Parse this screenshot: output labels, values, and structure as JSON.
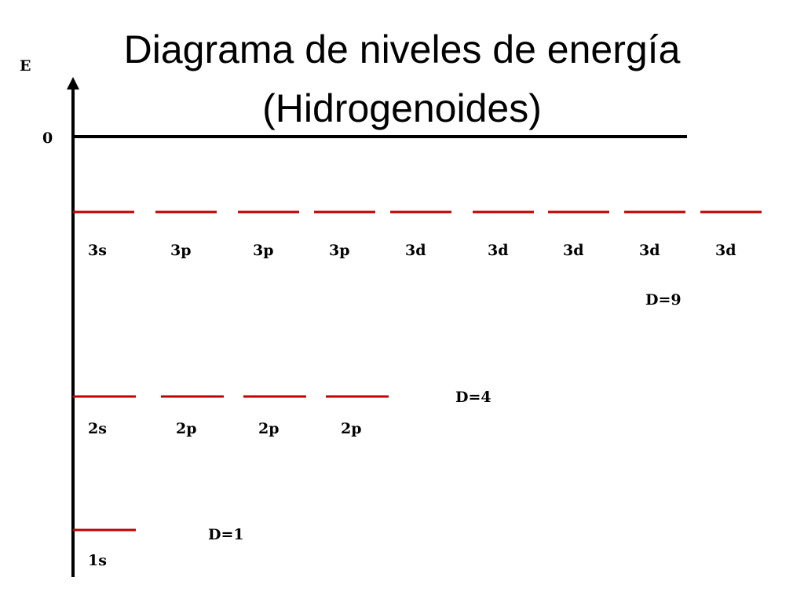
{
  "title": [
    "Diagrama de niveles de energía",
    "(Hidrogenoides)"
  ],
  "axis": {
    "label": "E",
    "zero": "0"
  },
  "levels": [
    {
      "orbitals": [
        "3s",
        "3p",
        "3p",
        "3p",
        "3d",
        "3d",
        "3d",
        "3d",
        "3d"
      ],
      "degeneracy": "D=9"
    },
    {
      "orbitals": [
        "2s",
        "2p",
        "2p",
        "2p"
      ],
      "degeneracy": "D=4"
    },
    {
      "orbitals": [
        "1s"
      ],
      "degeneracy": "D=1"
    }
  ]
}
